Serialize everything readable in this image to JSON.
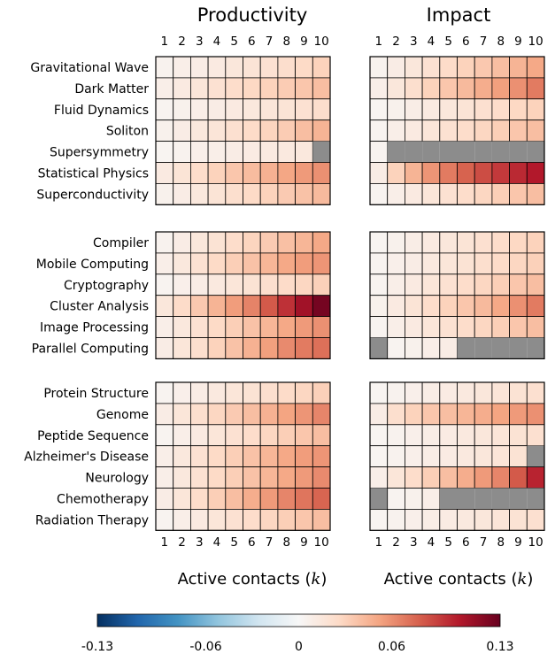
{
  "chart_data": {
    "type": "heatmap",
    "panel_titles": [
      "Productivity",
      "Impact"
    ],
    "x_ticks": [
      "1",
      "2",
      "3",
      "4",
      "5",
      "6",
      "7",
      "8",
      "9",
      "10"
    ],
    "x_label_prefix": "Active contacts (",
    "x_label_var": "k",
    "x_label_suffix": ")",
    "colorbar": {
      "min": -0.13,
      "max": 0.13,
      "ticks": [
        "-0.13",
        "-0.06",
        "0",
        "0.06",
        "0.13"
      ],
      "tick_values": [
        -0.13,
        -0.06,
        0,
        0.06,
        0.13
      ]
    },
    "missing_color": "#8c8c8c",
    "groups": [
      {
        "rows": [
          "Gravitational Wave",
          "Dark Matter",
          "Fluid Dynamics",
          "Soliton",
          "Supersymmetry",
          "Statistical Physics",
          "Superconductivity"
        ],
        "productivity": [
          [
            0.005,
            0.008,
            0.01,
            0.012,
            0.015,
            0.018,
            0.02,
            0.023,
            0.026,
            0.03
          ],
          [
            0.008,
            0.012,
            0.016,
            0.02,
            0.024,
            0.027,
            0.03,
            0.033,
            0.036,
            0.04
          ],
          [
            0.004,
            0.006,
            0.008,
            0.01,
            0.012,
            0.014,
            0.016,
            0.018,
            0.02,
            0.023
          ],
          [
            0.006,
            0.01,
            0.014,
            0.017,
            0.021,
            0.025,
            0.029,
            0.033,
            0.04,
            0.045
          ],
          [
            0.003,
            0.005,
            0.007,
            0.008,
            0.01,
            0.011,
            0.012,
            0.013,
            0.014,
            null
          ],
          [
            0.012,
            0.018,
            0.024,
            0.03,
            0.036,
            0.041,
            0.046,
            0.051,
            0.056,
            0.06
          ],
          [
            0.006,
            0.01,
            0.014,
            0.018,
            0.022,
            0.026,
            0.03,
            0.034,
            0.038,
            0.042
          ]
        ],
        "impact": [
          [
            0.005,
            0.01,
            0.015,
            0.02,
            0.025,
            0.03,
            0.035,
            0.04,
            0.045,
            0.05
          ],
          [
            0.008,
            0.015,
            0.022,
            0.03,
            0.036,
            0.042,
            0.048,
            0.054,
            0.06,
            0.068
          ],
          [
            0.003,
            0.006,
            0.009,
            0.012,
            0.015,
            0.018,
            0.021,
            0.024,
            0.027,
            0.03
          ],
          [
            0.004,
            0.008,
            0.012,
            0.016,
            0.02,
            0.024,
            0.028,
            0.032,
            0.036,
            0.04
          ],
          [
            0.004,
            null,
            null,
            null,
            null,
            null,
            null,
            null,
            null,
            null
          ],
          [
            0.01,
            0.03,
            0.045,
            0.058,
            0.068,
            0.077,
            0.085,
            0.092,
            0.098,
            0.104
          ],
          [
            0.004,
            0.008,
            0.012,
            0.016,
            0.02,
            0.024,
            0.028,
            0.032,
            0.036,
            0.04
          ]
        ]
      },
      {
        "rows": [
          "Compiler",
          "Mobile Computing",
          "Cryptography",
          "Cluster Analysis",
          "Image Processing",
          "Parallel Computing"
        ],
        "productivity": [
          [
            0.005,
            0.01,
            0.015,
            0.019,
            0.024,
            0.029,
            0.034,
            0.039,
            0.044,
            0.05
          ],
          [
            0.008,
            0.014,
            0.02,
            0.026,
            0.032,
            0.038,
            0.044,
            0.05,
            0.055,
            0.058
          ],
          [
            0.004,
            0.007,
            0.01,
            0.013,
            0.016,
            0.019,
            0.022,
            0.025,
            0.028,
            0.031
          ],
          [
            0.015,
            0.025,
            0.035,
            0.045,
            0.055,
            0.065,
            0.08,
            0.095,
            0.11,
            0.125
          ],
          [
            0.008,
            0.014,
            0.02,
            0.026,
            0.032,
            0.038,
            0.044,
            0.05,
            0.056,
            0.06
          ],
          [
            0.01,
            0.016,
            0.022,
            0.03,
            0.038,
            0.046,
            0.054,
            0.062,
            0.068,
            0.072
          ]
        ],
        "impact": [
          [
            0.003,
            0.006,
            0.009,
            0.012,
            0.015,
            0.018,
            0.021,
            0.024,
            0.027,
            0.03
          ],
          [
            0.004,
            0.007,
            0.01,
            0.013,
            0.016,
            0.019,
            0.022,
            0.025,
            0.028,
            0.031
          ],
          [
            0.004,
            0.008,
            0.012,
            0.016,
            0.02,
            0.024,
            0.028,
            0.032,
            0.036,
            0.04
          ],
          [
            0.006,
            0.012,
            0.018,
            0.024,
            0.03,
            0.036,
            0.042,
            0.05,
            0.06,
            0.068
          ],
          [
            0.004,
            0.008,
            0.012,
            0.016,
            0.02,
            0.024,
            0.028,
            0.032,
            0.036,
            0.04
          ],
          [
            null,
            0.004,
            0.006,
            0.008,
            0.01,
            null,
            null,
            null,
            null,
            null
          ]
        ]
      },
      {
        "rows": [
          "Protein Structure",
          "Genome",
          "Peptide Sequence",
          "Alzheimer's Disease",
          "Neurology",
          "Chemotherapy",
          "Radiation Therapy"
        ],
        "productivity": [
          [
            0.004,
            0.007,
            0.01,
            0.013,
            0.016,
            0.019,
            0.022,
            0.025,
            0.028,
            0.031
          ],
          [
            0.01,
            0.016,
            0.022,
            0.028,
            0.034,
            0.04,
            0.046,
            0.052,
            0.058,
            0.064
          ],
          [
            0.004,
            0.008,
            0.012,
            0.016,
            0.02,
            0.024,
            0.028,
            0.032,
            0.036,
            0.04
          ],
          [
            0.008,
            0.014,
            0.02,
            0.026,
            0.032,
            0.038,
            0.044,
            0.05,
            0.055,
            0.058
          ],
          [
            0.008,
            0.014,
            0.02,
            0.026,
            0.032,
            0.038,
            0.044,
            0.05,
            0.056,
            0.062
          ],
          [
            0.01,
            0.016,
            0.024,
            0.032,
            0.04,
            0.048,
            0.056,
            0.064,
            0.07,
            0.076
          ],
          [
            0.004,
            0.008,
            0.012,
            0.016,
            0.02,
            0.024,
            0.028,
            0.032,
            0.036,
            0.04
          ]
        ],
        "impact": [
          [
            0.003,
            0.005,
            0.007,
            0.009,
            0.011,
            0.013,
            0.015,
            0.017,
            0.019,
            0.021
          ],
          [
            0.01,
            0.022,
            0.03,
            0.036,
            0.04,
            0.044,
            0.048,
            0.052,
            0.056,
            0.06
          ],
          [
            0.003,
            0.005,
            0.007,
            0.009,
            0.011,
            0.013,
            0.015,
            0.017,
            0.019,
            0.021
          ],
          [
            0.003,
            0.005,
            0.007,
            0.009,
            0.011,
            0.013,
            0.015,
            0.017,
            0.019,
            null
          ],
          [
            0.008,
            0.016,
            0.024,
            0.032,
            0.04,
            0.048,
            0.056,
            0.064,
            0.08,
            0.1
          ],
          [
            null,
            0.004,
            0.006,
            0.008,
            null,
            null,
            null,
            null,
            null,
            null
          ],
          [
            0.003,
            0.005,
            0.007,
            0.009,
            0.011,
            0.013,
            0.015,
            0.017,
            0.019,
            0.021
          ]
        ]
      }
    ]
  }
}
